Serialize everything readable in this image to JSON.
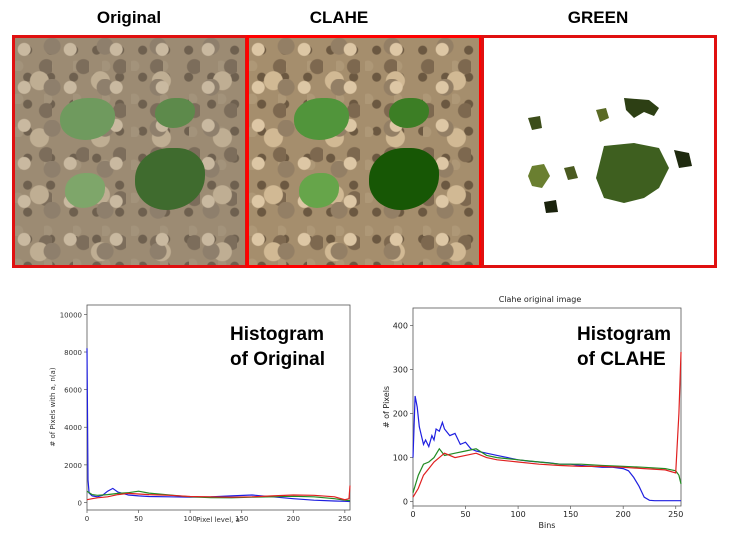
{
  "panels": {
    "original_title": "Original",
    "clahe_title": "CLAHE",
    "green_title": "GREEN"
  },
  "colors": {
    "frame": "#e01010",
    "red": "#e02020",
    "green": "#228b22",
    "blue": "#1f1fe0"
  },
  "chart_data": [
    {
      "type": "line",
      "title": "",
      "overlay_label_line1": "Histogram",
      "overlay_label_line2": "of Original",
      "xlabel": "Pixel level, a",
      "ylabel": "# of Pixels with a, n(a)",
      "xlim": [
        0,
        255
      ],
      "ylim": [
        -400,
        10500
      ],
      "xticks": [
        0,
        50,
        100,
        150,
        200,
        250
      ],
      "yticks": [
        0,
        2000,
        4000,
        6000,
        8000,
        10000
      ],
      "grid": false,
      "series": [
        {
          "color": "blue",
          "x": [
            0,
            1,
            2,
            5,
            10,
            15,
            20,
            25,
            30,
            40,
            50,
            60,
            80,
            100,
            120,
            140,
            160,
            180,
            200,
            220,
            240,
            250,
            255
          ],
          "y": [
            8200,
            1200,
            500,
            350,
            300,
            380,
            600,
            750,
            550,
            400,
            350,
            320,
            300,
            280,
            300,
            350,
            400,
            300,
            200,
            120,
            80,
            60,
            50
          ]
        },
        {
          "color": "green",
          "x": [
            0,
            5,
            10,
            15,
            20,
            30,
            40,
            50,
            60,
            80,
            100,
            120,
            140,
            160,
            180,
            200,
            220,
            240,
            250,
            255
          ],
          "y": [
            600,
            420,
            380,
            400,
            420,
            480,
            520,
            600,
            500,
            400,
            300,
            260,
            250,
            280,
            300,
            330,
            300,
            200,
            120,
            100
          ]
        },
        {
          "color": "red",
          "x": [
            0,
            5,
            10,
            20,
            30,
            40,
            50,
            60,
            80,
            100,
            120,
            140,
            160,
            180,
            200,
            220,
            240,
            250,
            254,
            255
          ],
          "y": [
            150,
            200,
            250,
            300,
            420,
            480,
            450,
            420,
            380,
            320,
            300,
            280,
            300,
            350,
            400,
            380,
            300,
            150,
            200,
            900
          ]
        }
      ]
    },
    {
      "type": "line",
      "title": "Clahe original image",
      "overlay_label_line1": "Histogram",
      "overlay_label_line2": "of CLAHE",
      "xlabel": "Bins",
      "ylabel": "# of Pixels",
      "xlim": [
        0,
        255
      ],
      "ylim": [
        -10,
        440
      ],
      "xticks": [
        0,
        50,
        100,
        150,
        200,
        250
      ],
      "yticks": [
        0,
        100,
        200,
        300,
        400
      ],
      "grid": false,
      "series": [
        {
          "color": "blue",
          "x": [
            0,
            2,
            4,
            6,
            8,
            10,
            12,
            15,
            18,
            20,
            22,
            25,
            28,
            30,
            35,
            40,
            45,
            50,
            55,
            60,
            70,
            80,
            90,
            100,
            110,
            120,
            130,
            140,
            150,
            160,
            170,
            180,
            190,
            200,
            205,
            210,
            215,
            220,
            225,
            230,
            240,
            250,
            255
          ],
          "y": [
            100,
            240,
            215,
            170,
            150,
            130,
            140,
            125,
            150,
            140,
            165,
            160,
            180,
            165,
            150,
            155,
            130,
            135,
            120,
            115,
            110,
            105,
            100,
            95,
            92,
            90,
            88,
            85,
            85,
            82,
            80,
            78,
            78,
            75,
            70,
            55,
            35,
            10,
            3,
            2,
            2,
            2,
            2
          ]
        },
        {
          "color": "green",
          "x": [
            0,
            5,
            10,
            15,
            20,
            25,
            30,
            40,
            50,
            60,
            70,
            80,
            100,
            120,
            140,
            160,
            180,
            200,
            220,
            240,
            250,
            253,
            255
          ],
          "y": [
            20,
            60,
            85,
            90,
            100,
            120,
            105,
            110,
            115,
            120,
            105,
            100,
            95,
            90,
            85,
            85,
            82,
            80,
            78,
            75,
            70,
            60,
            40
          ]
        },
        {
          "color": "red",
          "x": [
            0,
            5,
            10,
            15,
            20,
            25,
            30,
            40,
            50,
            60,
            70,
            80,
            100,
            120,
            140,
            160,
            180,
            200,
            220,
            240,
            250,
            253,
            255
          ],
          "y": [
            10,
            30,
            60,
            75,
            90,
            100,
            110,
            100,
            105,
            110,
            100,
            95,
            90,
            85,
            82,
            80,
            80,
            78,
            75,
            72,
            65,
            200,
            340
          ]
        }
      ]
    }
  ]
}
